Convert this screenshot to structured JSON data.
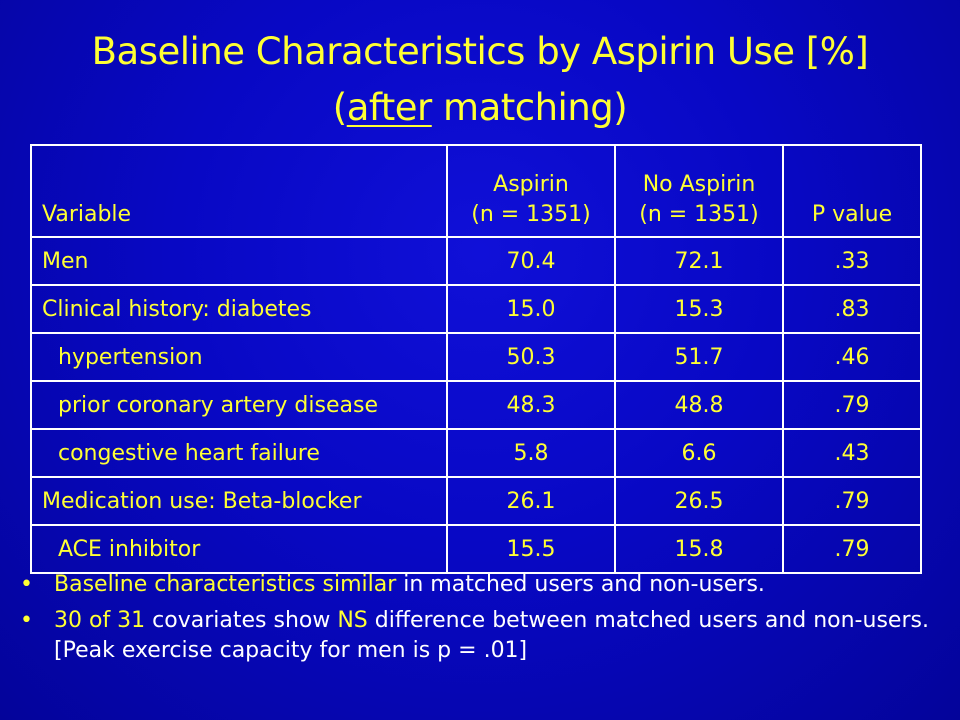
{
  "title": {
    "line1": "Baseline Characteristics by Aspirin Use [%]",
    "open_paren": "(",
    "underlined": "after",
    "rest": " matching)"
  },
  "table": {
    "headers": {
      "variable": "Variable",
      "aspirin": "Aspirin",
      "aspirin_n": "(n = 1351)",
      "no_aspirin": "No Aspirin",
      "no_aspirin_n": "(n = 1351)",
      "p_value": "P value"
    },
    "rows": [
      {
        "label": "Men",
        "aspirin": "70.4",
        "no_aspirin": "72.1",
        "p": ".33"
      },
      {
        "label": "Clinical history: diabetes",
        "aspirin": "15.0",
        "no_aspirin": "15.3",
        "p": ".83"
      },
      {
        "label": "hypertension",
        "aspirin": "50.3",
        "no_aspirin": "51.7",
        "p": ".46"
      },
      {
        "label": "prior coronary artery disease",
        "aspirin": "48.3",
        "no_aspirin": "48.8",
        "p": ".79"
      },
      {
        "label": "congestive heart failure",
        "aspirin": "5.8",
        "no_aspirin": "6.6",
        "p": ".43"
      },
      {
        "label": "Medication use: Beta-blocker",
        "aspirin": "26.1",
        "no_aspirin": "26.5",
        "p": ".79"
      },
      {
        "label": "ACE inhibitor",
        "aspirin": "15.5",
        "no_aspirin": "15.8",
        "p": ".79"
      }
    ]
  },
  "bullets": {
    "bullet_char": "•",
    "b1": {
      "hl1": "Baseline characteristics",
      "t1": " ",
      "hl2": "similar",
      "t2": " in matched users and non-users."
    },
    "b2": {
      "hl1": "30 of 31",
      "t1": " covariates show ",
      "hl2": "NS",
      "t2": " difference between matched users and non-users. [Peak exercise capacity for men is p = .01]"
    }
  },
  "colors": {
    "background": "#0808c4",
    "title_text": "#ffff33",
    "body_text": "#ffffff",
    "table_border": "#ffffff"
  }
}
